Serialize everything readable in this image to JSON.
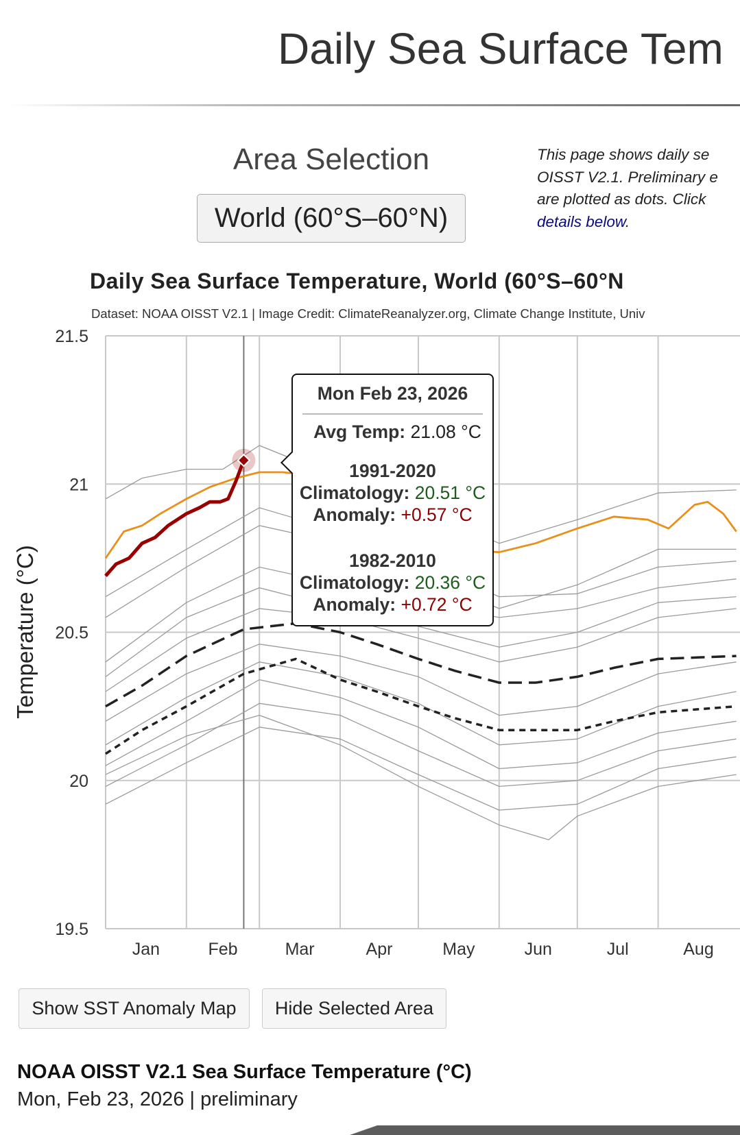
{
  "header": {
    "title": "Daily Sea Surface Tem"
  },
  "area_selection": {
    "heading": "Area Selection",
    "selected": "World (60°S–60°N)"
  },
  "intro": {
    "lines": [
      "This page shows daily se",
      "OISST V2.1. Preliminary e",
      "are plotted as dots. Click"
    ],
    "link": "details below",
    "trail": "."
  },
  "chart_title": "Daily Sea Surface Temperature, World (60°S–60°N",
  "chart_credit": "Dataset: NOAA OISST V2.1 | Image Credit: ClimateReanalyzer.org, Climate Change Institute, Univ",
  "tooltip": {
    "date": "Mon Feb 23, 2026",
    "avg_label": "Avg Temp:",
    "avg_value": "21.08 °C",
    "clim1_period": "1991-2020",
    "clim1_label": "Climatology:",
    "clim1_value": "20.51 °C",
    "anom1_label": "Anomaly:",
    "anom1_value": "+0.57 °C",
    "clim2_period": "1982-2010",
    "clim2_label": "Climatology:",
    "clim2_value": "20.36 °C",
    "anom2_label": "Anomaly:",
    "anom2_value": "+0.72 °C"
  },
  "buttons": {
    "anomaly_map": "Show SST Anomaly Map",
    "hide_area": "Hide Selected Area"
  },
  "footer": {
    "title": "NOAA OISST V2.1 Sea Surface Temperature (°C)",
    "subtitle": "Mon, Feb 23, 2026 | preliminary"
  },
  "chart_data": {
    "type": "line",
    "ylabel": "Temperature (°C)",
    "xlabel": "",
    "ylim": [
      19.5,
      21.5
    ],
    "yticks": [
      "21.5",
      "21",
      "20.5",
      "20",
      "19.5"
    ],
    "xticks": [
      "Jan",
      "Feb",
      "Mar",
      "Apr",
      "May",
      "Jun",
      "Jul",
      "Aug"
    ],
    "grid": true,
    "hover_date": "Feb 23",
    "colors": {
      "current": "#990000",
      "previous": "#e8901a",
      "clim1991": "#222222",
      "clim1982": "#222222",
      "others": "#9a9a9a",
      "grid": "#c8c8c8"
    },
    "series": [
      {
        "role": "current",
        "points": [
          [
            "Jan 1",
            20.69
          ],
          [
            "Jan 5",
            20.73
          ],
          [
            "Jan 10",
            20.75
          ],
          [
            "Jan 15",
            20.8
          ],
          [
            "Jan 20",
            20.82
          ],
          [
            "Jan 25",
            20.86
          ],
          [
            "Feb 1",
            20.9
          ],
          [
            "Feb 6",
            20.92
          ],
          [
            "Feb 10",
            20.94
          ],
          [
            "Feb 14",
            20.94
          ],
          [
            "Feb 17",
            20.95
          ],
          [
            "Feb 20",
            21.01
          ],
          [
            "Feb 23",
            21.08
          ]
        ]
      },
      {
        "role": "previous",
        "points": [
          [
            "Jan 1",
            20.75
          ],
          [
            "Jan 8",
            20.84
          ],
          [
            "Jan 15",
            20.86
          ],
          [
            "Jan 22",
            20.9
          ],
          [
            "Feb 1",
            20.95
          ],
          [
            "Feb 10",
            20.99
          ],
          [
            "Feb 20",
            21.02
          ],
          [
            "Mar 1",
            21.04
          ],
          [
            "Mar 10",
            21.04
          ],
          [
            "Mar 20",
            21.03
          ],
          [
            "Apr 1",
            20.98
          ],
          [
            "Apr 15",
            20.92
          ],
          [
            "May 1",
            20.84
          ],
          [
            "May 15",
            20.78
          ],
          [
            "Jun 1",
            20.77
          ],
          [
            "Jun 15",
            20.8
          ],
          [
            "Jul 1",
            20.85
          ],
          [
            "Jul 15",
            20.89
          ],
          [
            "Jul 28",
            20.88
          ],
          [
            "Aug 5",
            20.85
          ],
          [
            "Aug 15",
            20.93
          ],
          [
            "Aug 20",
            20.94
          ],
          [
            "Aug 26",
            20.9
          ],
          [
            "Aug 31",
            20.84
          ]
        ]
      },
      {
        "role": "clim1991",
        "points": [
          [
            "Jan 1",
            20.25
          ],
          [
            "Jan 15",
            20.32
          ],
          [
            "Feb 1",
            20.42
          ],
          [
            "Feb 23",
            20.51
          ],
          [
            "Mar 15",
            20.53
          ],
          [
            "Apr 1",
            20.5
          ],
          [
            "Apr 15",
            20.46
          ],
          [
            "May 1",
            20.41
          ],
          [
            "May 15",
            20.37
          ],
          [
            "Jun 1",
            20.33
          ],
          [
            "Jun 15",
            20.33
          ],
          [
            "Jul 1",
            20.35
          ],
          [
            "Jul 15",
            20.38
          ],
          [
            "Aug 1",
            20.41
          ],
          [
            "Aug 31",
            20.42
          ]
        ]
      },
      {
        "role": "clim1982",
        "points": [
          [
            "Jan 1",
            20.09
          ],
          [
            "Jan 15",
            20.17
          ],
          [
            "Feb 1",
            20.25
          ],
          [
            "Feb 23",
            20.36
          ],
          [
            "Mar 15",
            20.41
          ],
          [
            "Apr 1",
            20.34
          ],
          [
            "Apr 15",
            20.3
          ],
          [
            "May 1",
            20.25
          ],
          [
            "May 15",
            20.21
          ],
          [
            "Jun 1",
            20.17
          ],
          [
            "Jun 15",
            20.17
          ],
          [
            "Jul 1",
            20.17
          ],
          [
            "Jul 15",
            20.2
          ],
          [
            "Aug 1",
            20.23
          ],
          [
            "Aug 31",
            20.25
          ]
        ]
      },
      {
        "role": "others",
        "points": [
          [
            "Jan 1",
            20.95
          ],
          [
            "Jan 15",
            21.02
          ],
          [
            "Feb 1",
            21.05
          ],
          [
            "Feb 15",
            21.05
          ],
          [
            "Mar 1",
            21.13
          ],
          [
            "Apr 1",
            21.02
          ],
          [
            "May 1",
            20.92
          ],
          [
            "Jun 1",
            20.8
          ],
          [
            "Jul 1",
            20.88
          ],
          [
            "Aug 1",
            20.97
          ],
          [
            "Aug 31",
            20.98
          ]
        ]
      },
      {
        "role": "others",
        "points": [
          [
            "Jan 1",
            20.55
          ],
          [
            "Feb 1",
            20.72
          ],
          [
            "Mar 1",
            20.86
          ],
          [
            "Apr 1",
            20.8
          ],
          [
            "May 1",
            20.74
          ],
          [
            "Jun 1",
            20.62
          ],
          [
            "Jul 1",
            20.63
          ],
          [
            "Aug 1",
            20.72
          ],
          [
            "Aug 31",
            20.74
          ]
        ]
      },
      {
        "role": "others",
        "points": [
          [
            "Jan 1",
            20.4
          ],
          [
            "Feb 1",
            20.6
          ],
          [
            "Mar 1",
            20.72
          ],
          [
            "Apr 1",
            20.66
          ],
          [
            "May 1",
            20.6
          ],
          [
            "Jun 1",
            20.55
          ],
          [
            "Jul 1",
            20.58
          ],
          [
            "Aug 1",
            20.65
          ],
          [
            "Aug 31",
            20.68
          ]
        ]
      },
      {
        "role": "others",
        "points": [
          [
            "Jan 1",
            20.3
          ],
          [
            "Feb 1",
            20.48
          ],
          [
            "Mar 1",
            20.58
          ],
          [
            "Apr 1",
            20.55
          ],
          [
            "May 1",
            20.48
          ],
          [
            "Jun 1",
            20.4
          ],
          [
            "Jul 1",
            20.45
          ],
          [
            "Aug 1",
            20.55
          ],
          [
            "Aug 31",
            20.58
          ]
        ]
      },
      {
        "role": "others",
        "points": [
          [
            "Jan 1",
            20.2
          ],
          [
            "Feb 1",
            20.36
          ],
          [
            "Mar 1",
            20.46
          ],
          [
            "Apr 1",
            20.42
          ],
          [
            "May 1",
            20.35
          ],
          [
            "Jun 1",
            20.22
          ],
          [
            "Jul 1",
            20.25
          ],
          [
            "Aug 1",
            20.36
          ],
          [
            "Aug 31",
            20.4
          ]
        ]
      },
      {
        "role": "others",
        "points": [
          [
            "Jan 1",
            20.12
          ],
          [
            "Feb 1",
            20.28
          ],
          [
            "Mar 1",
            20.4
          ],
          [
            "Apr 1",
            20.35
          ],
          [
            "May 1",
            20.26
          ],
          [
            "Jun 1",
            20.12
          ],
          [
            "Jul 1",
            20.14
          ],
          [
            "Aug 1",
            20.25
          ],
          [
            "Aug 31",
            20.3
          ]
        ]
      },
      {
        "role": "others",
        "points": [
          [
            "Jan 1",
            20.05
          ],
          [
            "Feb 1",
            20.2
          ],
          [
            "Mar 1",
            20.34
          ],
          [
            "Apr 1",
            20.28
          ],
          [
            "May 1",
            20.18
          ],
          [
            "Jun 1",
            20.04
          ],
          [
            "Jul 1",
            20.06
          ],
          [
            "Aug 1",
            20.16
          ],
          [
            "Aug 31",
            20.2
          ]
        ]
      },
      {
        "role": "others",
        "points": [
          [
            "Jan 1",
            19.98
          ],
          [
            "Feb 1",
            20.12
          ],
          [
            "Mar 1",
            20.26
          ],
          [
            "Apr 1",
            20.22
          ],
          [
            "May 1",
            20.1
          ],
          [
            "Jun 1",
            19.98
          ],
          [
            "Jul 1",
            20.0
          ],
          [
            "Aug 1",
            20.1
          ],
          [
            "Aug 31",
            20.14
          ]
        ]
      },
      {
        "role": "others",
        "points": [
          [
            "Jan 1",
            19.92
          ],
          [
            "Feb 1",
            20.06
          ],
          [
            "Mar 1",
            20.18
          ],
          [
            "Apr 1",
            20.14
          ],
          [
            "May 1",
            20.02
          ],
          [
            "Jun 1",
            19.9
          ],
          [
            "Jul 1",
            19.92
          ],
          [
            "Aug 1",
            20.04
          ],
          [
            "Aug 31",
            20.08
          ]
        ]
      },
      {
        "role": "others",
        "points": [
          [
            "Jan 1",
            20.02
          ],
          [
            "Feb 1",
            20.15
          ],
          [
            "Mar 1",
            20.22
          ],
          [
            "Apr 1",
            20.12
          ],
          [
            "May 1",
            19.98
          ],
          [
            "Jun 1",
            19.85
          ],
          [
            "Jun 20",
            19.8
          ],
          [
            "Jul 1",
            19.88
          ],
          [
            "Aug 1",
            19.98
          ],
          [
            "Aug 31",
            20.02
          ]
        ]
      },
      {
        "role": "others",
        "points": [
          [
            "Jan 1",
            20.35
          ],
          [
            "Feb 1",
            20.55
          ],
          [
            "Mar 1",
            20.65
          ],
          [
            "Apr 1",
            20.58
          ],
          [
            "May 1",
            20.52
          ],
          [
            "Jun 1",
            20.45
          ],
          [
            "Jul 1",
            20.5
          ],
          [
            "Aug 1",
            20.6
          ],
          [
            "Aug 31",
            20.62
          ]
        ]
      },
      {
        "role": "others",
        "points": [
          [
            "Jan 1",
            20.62
          ],
          [
            "Feb 1",
            20.78
          ],
          [
            "Mar 1",
            20.92
          ],
          [
            "Apr 1",
            20.84
          ],
          [
            "May 1",
            20.7
          ],
          [
            "Jun 1",
            20.58
          ],
          [
            "Jul 1",
            20.66
          ],
          [
            "Aug 1",
            20.78
          ],
          [
            "Aug 31",
            20.78
          ]
        ]
      }
    ]
  }
}
